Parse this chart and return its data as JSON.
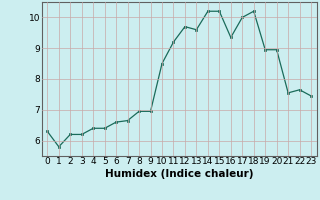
{
  "x": [
    0,
    1,
    2,
    3,
    4,
    5,
    6,
    7,
    8,
    9,
    10,
    11,
    12,
    13,
    14,
    15,
    16,
    17,
    18,
    19,
    20,
    21,
    22,
    23
  ],
  "y": [
    6.3,
    5.8,
    6.2,
    6.2,
    6.4,
    6.4,
    6.6,
    6.65,
    6.95,
    6.95,
    8.5,
    9.2,
    9.7,
    9.6,
    10.2,
    10.2,
    9.35,
    10.0,
    10.2,
    8.95,
    8.95,
    7.55,
    7.65,
    7.45
  ],
  "xlabel": "Humidex (Indice chaleur)",
  "ylim": [
    5.5,
    10.5
  ],
  "xlim": [
    -0.5,
    23.5
  ],
  "yticks": [
    6,
    7,
    8,
    9,
    10
  ],
  "xticks": [
    0,
    1,
    2,
    3,
    4,
    5,
    6,
    7,
    8,
    9,
    10,
    11,
    12,
    13,
    14,
    15,
    16,
    17,
    18,
    19,
    20,
    21,
    22,
    23
  ],
  "line_color": "#1a6b5a",
  "marker_color": "#1a6b5a",
  "bg_color": "#cceef0",
  "grid_color": "#c8a8a8",
  "axis_color": "#606060",
  "label_fontsize": 7.5,
  "tick_fontsize": 6.5
}
